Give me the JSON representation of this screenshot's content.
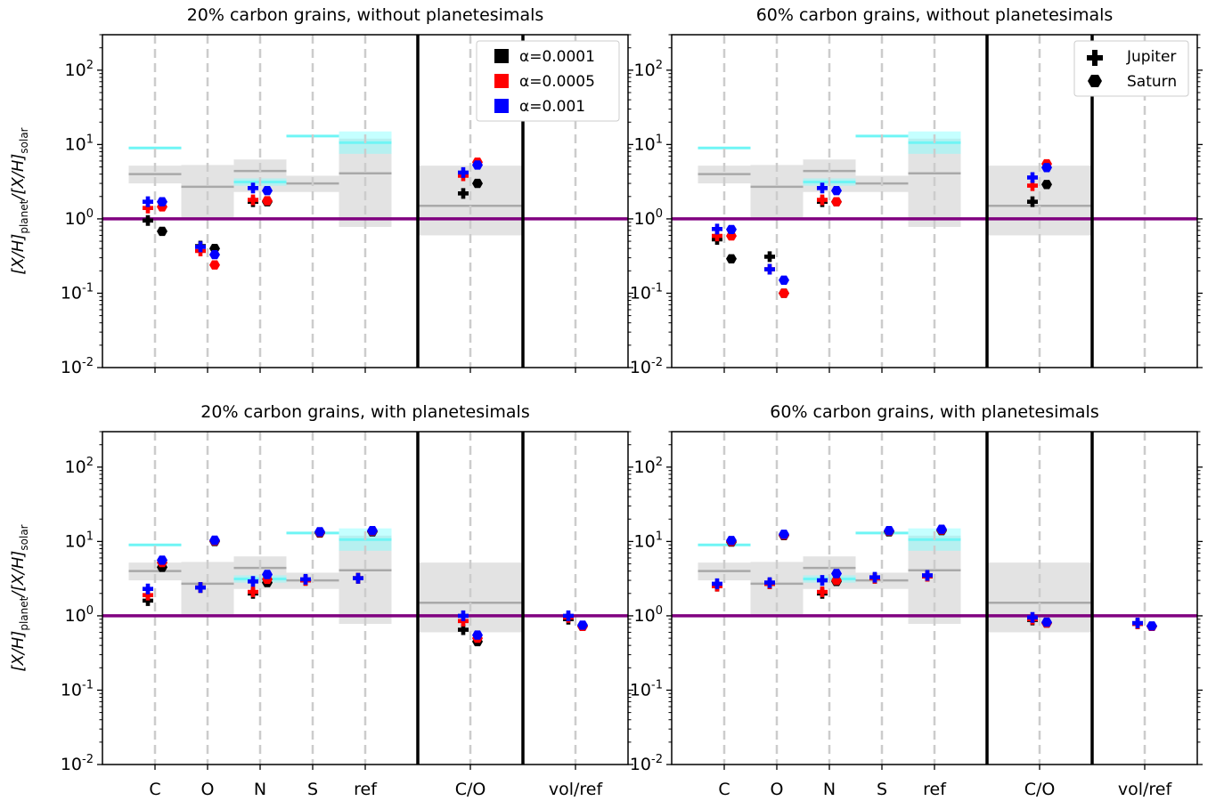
{
  "figure": {
    "ylabel_main": "[X/H]",
    "ylabel_sub1": "planet",
    "ylabel_mid": "/[X/H]",
    "ylabel_sub2": "solar"
  },
  "chart_data": [
    {
      "type": "scatter",
      "title": "20% carbon grains, without planetesimals",
      "yscale": "log",
      "ylim": [
        0.01,
        300
      ],
      "categories": [
        "C",
        "O",
        "N",
        "S",
        "ref",
        "C/O",
        "vol/ref"
      ],
      "reference_line": 1.0,
      "legend": {
        "placement": "top-right",
        "entries": [
          "α=0.0001",
          "α=0.0005",
          "α=0.001"
        ]
      },
      "series": [
        {
          "name": "α=0.0001",
          "color": "#000000",
          "jupiter": [
            0.95,
            0.43,
            1.7,
            null,
            null,
            2.2,
            null
          ],
          "saturn": [
            0.68,
            0.4,
            1.7,
            null,
            null,
            3.0,
            null
          ]
        },
        {
          "name": "α=0.0005",
          "color": "#ff0000",
          "jupiter": [
            1.4,
            0.37,
            1.8,
            null,
            null,
            3.8,
            null
          ],
          "saturn": [
            1.45,
            0.24,
            1.75,
            null,
            null,
            5.8,
            null
          ]
        },
        {
          "name": "α=0.001",
          "color": "#0000ff",
          "jupiter": [
            1.7,
            0.42,
            2.6,
            null,
            null,
            4.2,
            null
          ],
          "saturn": [
            1.7,
            0.33,
            2.4,
            null,
            null,
            5.3,
            null
          ]
        }
      ]
    },
    {
      "type": "scatter",
      "title": "60% carbon grains, without planetesimals",
      "yscale": "log",
      "ylim": [
        0.01,
        300
      ],
      "categories": [
        "C",
        "O",
        "N",
        "S",
        "ref",
        "C/O",
        "vol/ref"
      ],
      "reference_line": 1.0,
      "legend": {
        "placement": "top-right",
        "entries": [
          "Jupiter",
          "Saturn"
        ]
      },
      "series": [
        {
          "name": "α=0.0001",
          "color": "#000000",
          "jupiter": [
            0.53,
            0.31,
            1.7,
            null,
            null,
            1.7,
            null
          ],
          "saturn": [
            0.29,
            0.1,
            1.7,
            null,
            null,
            2.9,
            null
          ]
        },
        {
          "name": "α=0.0005",
          "color": "#ff0000",
          "jupiter": [
            0.59,
            0.21,
            1.8,
            null,
            null,
            2.8,
            null
          ],
          "saturn": [
            0.59,
            0.1,
            1.7,
            null,
            null,
            5.5,
            null
          ]
        },
        {
          "name": "α=0.001",
          "color": "#0000ff",
          "jupiter": [
            0.73,
            0.21,
            2.6,
            null,
            null,
            3.6,
            null
          ],
          "saturn": [
            0.72,
            0.15,
            2.4,
            null,
            null,
            4.9,
            null
          ]
        }
      ]
    },
    {
      "type": "scatter",
      "title": "20% carbon grains, with planetesimals",
      "yscale": "log",
      "ylim": [
        0.01,
        300
      ],
      "categories": [
        "C",
        "O",
        "N",
        "S",
        "ref",
        "C/O",
        "vol/ref"
      ],
      "reference_line": 1.0,
      "series": [
        {
          "name": "α=0.0001",
          "color": "#000000",
          "jupiter": [
            1.6,
            2.4,
            2.0,
            3.0,
            3.2,
            0.65,
            0.9
          ],
          "saturn": [
            4.5,
            10.0,
            2.8,
            13.0,
            13.5,
            0.45,
            0.72
          ]
        },
        {
          "name": "α=0.0005",
          "color": "#ff0000",
          "jupiter": [
            1.9,
            2.4,
            2.1,
            3.0,
            3.2,
            0.85,
            0.95
          ],
          "saturn": [
            5.2,
            10.2,
            3.1,
            13.2,
            13.8,
            0.5,
            0.72
          ]
        },
        {
          "name": "α=0.001",
          "color": "#0000ff",
          "jupiter": [
            2.3,
            2.4,
            2.9,
            3.1,
            3.2,
            1.0,
            1.0
          ],
          "saturn": [
            5.6,
            10.4,
            3.6,
            13.5,
            14.0,
            0.55,
            0.75
          ]
        }
      ]
    },
    {
      "type": "scatter",
      "title": "60% carbon grains, with planetesimals",
      "yscale": "log",
      "ylim": [
        0.01,
        300
      ],
      "categories": [
        "C",
        "O",
        "N",
        "S",
        "ref",
        "C/O",
        "vol/ref"
      ],
      "reference_line": 1.0,
      "series": [
        {
          "name": "α=0.0001",
          "color": "#000000",
          "jupiter": [
            2.5,
            2.7,
            2.0,
            3.2,
            3.4,
            0.88,
            0.78
          ],
          "saturn": [
            9.8,
            12.0,
            2.9,
            13.5,
            14.0,
            0.8,
            0.72
          ]
        },
        {
          "name": "α=0.0005",
          "color": "#ff0000",
          "jupiter": [
            2.5,
            2.7,
            2.1,
            3.2,
            3.4,
            0.9,
            0.78
          ],
          "saturn": [
            10.0,
            12.2,
            3.0,
            13.8,
            14.3,
            0.8,
            0.72
          ]
        },
        {
          "name": "α=0.001",
          "color": "#0000ff",
          "jupiter": [
            2.7,
            2.8,
            3.0,
            3.3,
            3.5,
            0.95,
            0.8
          ],
          "saturn": [
            10.3,
            12.5,
            3.7,
            14.0,
            14.6,
            0.82,
            0.73
          ]
        }
      ]
    }
  ],
  "observations": {
    "jupiter_cyan": [
      [
        9.0,
        9.0
      ],
      [
        null,
        null
      ],
      [
        2.8,
        3.5
      ],
      [
        13.0,
        13.0
      ],
      [
        7.5,
        15.0
      ]
    ],
    "saturn_gray": [
      [
        4.0,
        3.0,
        5.2
      ],
      [
        2.7,
        1.05,
        5.3
      ],
      [
        4.4,
        2.3,
        6.3
      ],
      [
        3.0,
        2.3,
        3.8
      ],
      [
        4.1,
        0.78,
        12.0
      ]
    ],
    "co_gray": [
      1.5,
      0.6,
      5.2
    ]
  }
}
